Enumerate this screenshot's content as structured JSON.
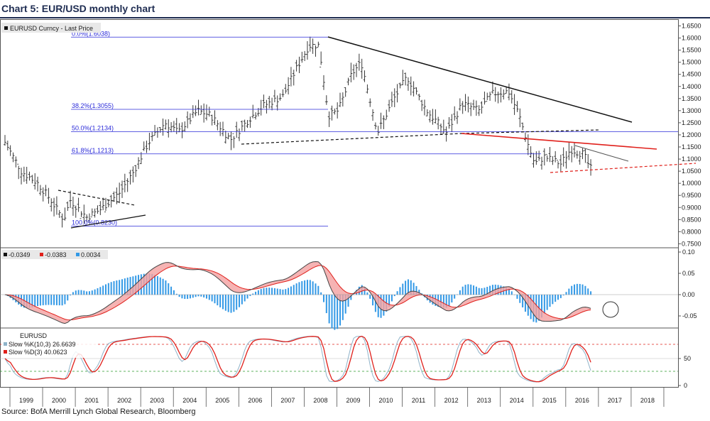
{
  "header": {
    "title": "Chart 5: EUR/USD monthly chart"
  },
  "footer": {
    "source": "Source: BofA Merrill Lynch Global Research, Bloomberg"
  },
  "chart_data": [
    {
      "type": "line",
      "title": "",
      "legend": "EURUSD Curncy - Last Price",
      "legend_position": "top-left",
      "x_labels": [
        "1999",
        "2000",
        "2001",
        "2002",
        "2003",
        "2004",
        "2005",
        "2006",
        "2007",
        "2008",
        "2009",
        "2010",
        "2011",
        "2012",
        "2013",
        "2014",
        "2015",
        "2016",
        "2017",
        "2018"
      ],
      "ylim": [
        0.75,
        1.65
      ],
      "y_ticks": [
        "1.6500",
        "1.6000",
        "1.5500",
        "1.5000",
        "1.4500",
        "1.4000",
        "1.3500",
        "1.3000",
        "1.2500",
        "1.2000",
        "1.1500",
        "1.1000",
        "1.0500",
        "1.0000",
        "0.9500",
        "0.9000",
        "0.8500",
        "0.8000",
        "0.7500"
      ],
      "grid": false,
      "series": [
        {
          "x": [
            1999.0,
            1999.5,
            2000.0,
            2000.3,
            2000.8,
            2001.0,
            2001.5,
            2001.9,
            2002.5,
            2002.9,
            2003.4,
            2003.9,
            2004.3,
            2004.9,
            2005.3,
            2005.9,
            2006.5,
            2006.9,
            2007.5,
            2007.9,
            2008.3,
            2008.6,
            2008.9,
            2009.2,
            2009.6,
            2009.9,
            2010.4,
            2010.9,
            2011.3,
            2011.9,
            2012.5,
            2013.0,
            2013.5,
            2013.9,
            2014.4,
            2014.7,
            2015.0,
            2015.2,
            2015.5,
            2016.0,
            2016.3,
            2016.7,
            2016.9
          ],
          "y": [
            1.17,
            1.05,
            1.0,
            0.95,
            0.85,
            0.93,
            0.86,
            0.89,
            0.96,
            1.04,
            1.17,
            1.25,
            1.21,
            1.3,
            1.28,
            1.18,
            1.27,
            1.32,
            1.36,
            1.47,
            1.57,
            1.57,
            1.28,
            1.3,
            1.45,
            1.5,
            1.21,
            1.35,
            1.44,
            1.3,
            1.21,
            1.33,
            1.3,
            1.37,
            1.38,
            1.29,
            1.16,
            1.08,
            1.11,
            1.08,
            1.14,
            1.12,
            1.06
          ]
        }
      ],
      "fibonacci_levels": [
        "0.0%(1.6038)",
        "38.2%(1.3055)",
        "50.0%(1.2134)",
        "61.8%(1.1213)",
        "100.0%(0.8230)"
      ],
      "fibonacci_values": [
        1.6038,
        1.3055,
        1.2134,
        1.1213,
        0.823
      ]
    },
    {
      "type": "line",
      "title": "",
      "legend": [
        {
          "name": "-0.0349",
          "color": "#111111"
        },
        {
          "name": "-0.0383",
          "color": "#e0201b"
        },
        {
          "name": "0.0034",
          "color": "#3399e6"
        }
      ],
      "ylim": [
        -0.07,
        0.11
      ],
      "y_ticks": [
        "0.10",
        "0.05",
        "0.00",
        "-0.05"
      ]
    },
    {
      "type": "line",
      "title": "",
      "legend": [
        {
          "name": "EURUSD",
          "color": ""
        },
        {
          "name": "Slow %K(10,3) 26.6639",
          "color": "#8fb3c9"
        },
        {
          "name": "Slow %D(3)   40.0623",
          "color": "#e0201b"
        }
      ],
      "ylim": [
        -5,
        100
      ],
      "y_ticks": [
        "50",
        "0"
      ]
    }
  ],
  "colors": {
    "title": "#1f2d52",
    "fib": "#2b2bd9",
    "red": "#e0201b",
    "blue": "#3399e6",
    "gray": "#8fb3c9"
  }
}
